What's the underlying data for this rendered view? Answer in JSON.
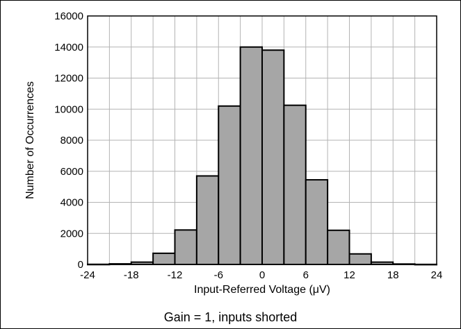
{
  "chart_data": {
    "type": "bar",
    "xlabel": "Input-Referred Voltage (μV)",
    "ylabel": "Number of Occurrences",
    "caption": "Gain = 1, inputs shorted",
    "bin_width": 3,
    "bin_left_edges": [
      -24,
      -21,
      -18,
      -15,
      -12,
      -9,
      -6,
      -3,
      0,
      3,
      6,
      9,
      12,
      15,
      18,
      21
    ],
    "values": [
      10,
      40,
      150,
      720,
      2220,
      5700,
      10200,
      14000,
      13800,
      10250,
      5450,
      2200,
      680,
      150,
      30,
      5
    ],
    "xlim": [
      -24,
      24
    ],
    "ylim": [
      0,
      16000
    ],
    "x_ticks": [
      -24,
      -18,
      -12,
      -6,
      0,
      6,
      12,
      18,
      24
    ],
    "y_ticks": [
      0,
      2000,
      4000,
      6000,
      8000,
      10000,
      12000,
      14000,
      16000
    ],
    "grid": true,
    "colors": {
      "bar_fill": "#a6a6a6",
      "bar_stroke": "#000000",
      "grid": "#b3b3b3"
    }
  }
}
